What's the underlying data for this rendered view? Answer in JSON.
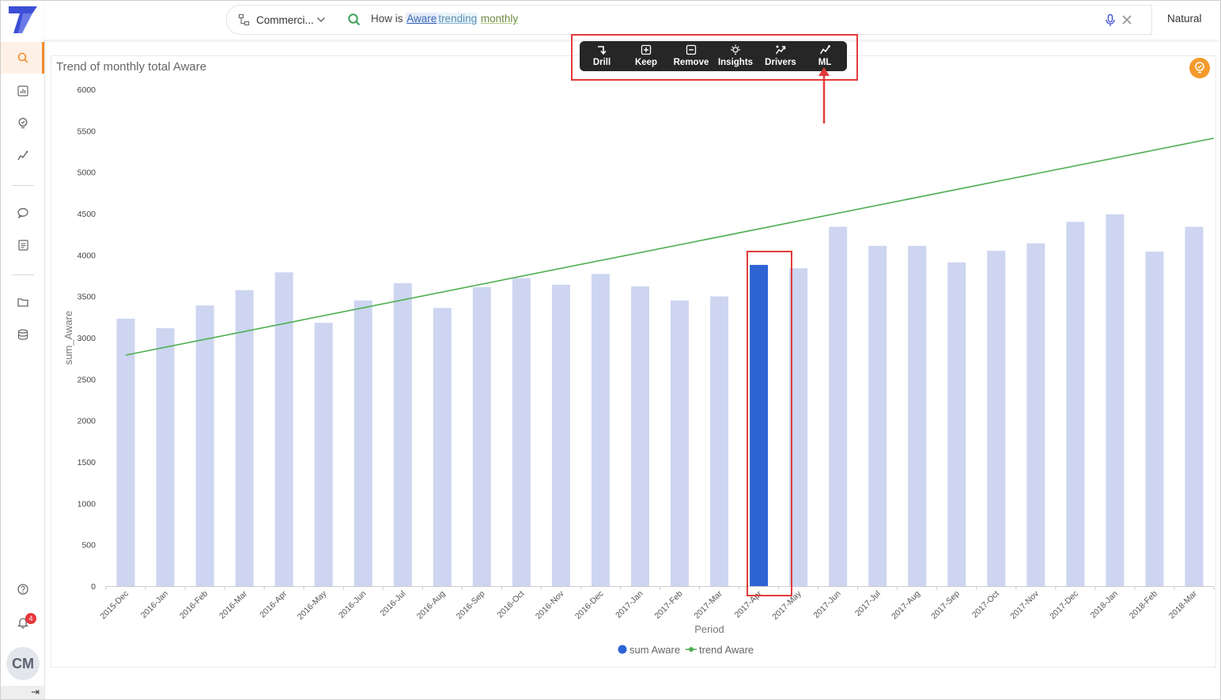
{
  "app": {
    "datasource_label": "Commerci...",
    "mode_label": "Natural",
    "notifications_count": "4",
    "user_initials": "CM"
  },
  "search": {
    "tokens": [
      "How is",
      "Aware",
      "trending",
      "monthly"
    ]
  },
  "toolbar": {
    "items": [
      {
        "label": "Drill",
        "icon": "drill-icon"
      },
      {
        "label": "Keep",
        "icon": "plus-box-icon"
      },
      {
        "label": "Remove",
        "icon": "minus-box-icon"
      },
      {
        "label": "Insights",
        "icon": "bulb-icon"
      },
      {
        "label": "Drivers",
        "icon": "drivers-icon"
      },
      {
        "label": "ML",
        "icon": "trend-icon"
      }
    ]
  },
  "colors": {
    "bar": "#cdd5f1",
    "bar_selected": "#2e63d4",
    "trend": "#4caf50",
    "accent": "#f08c2b",
    "annotation": "#e23b3b"
  },
  "chart_data": {
    "type": "bar",
    "title": "Trend of monthly total Aware",
    "xlabel": "Period",
    "ylabel": "sum_Aware",
    "ylim": [
      0,
      6000
    ],
    "yticks": [
      0,
      500,
      1000,
      1500,
      2000,
      2500,
      3000,
      3500,
      4000,
      4500,
      5000,
      5500,
      6000
    ],
    "categories": [
      "2015-Dec",
      "2016-Jan",
      "2016-Feb",
      "2016-Mar",
      "2016-Apr",
      "2016-May",
      "2016-Jun",
      "2016-Jul",
      "2016-Aug",
      "2016-Sep",
      "2016-Oct",
      "2016-Nov",
      "2016-Dec",
      "2017-Jan",
      "2017-Feb",
      "2017-Mar",
      "2017-Apr",
      "2017-May",
      "2017-Jun",
      "2017-Jul",
      "2017-Aug",
      "2017-Sep",
      "2017-Oct",
      "2017-Nov",
      "2017-Dec",
      "2018-Jan",
      "2018-Feb",
      "2018-Mar"
    ],
    "series": [
      {
        "name": "sum Aware",
        "type": "bar",
        "values": [
          3230,
          3115,
          3390,
          3575,
          3790,
          3180,
          3450,
          3660,
          3360,
          3610,
          3720,
          3640,
          3770,
          3620,
          3450,
          3500,
          3880,
          3840,
          4340,
          4110,
          4110,
          3910,
          4050,
          4140,
          4400,
          4490,
          4040,
          4340
        ]
      },
      {
        "name": "trend Aware",
        "type": "line",
        "start": 2790,
        "end": 5410
      }
    ],
    "selected_category": "2017-Apr",
    "legend": "bottom-center"
  }
}
